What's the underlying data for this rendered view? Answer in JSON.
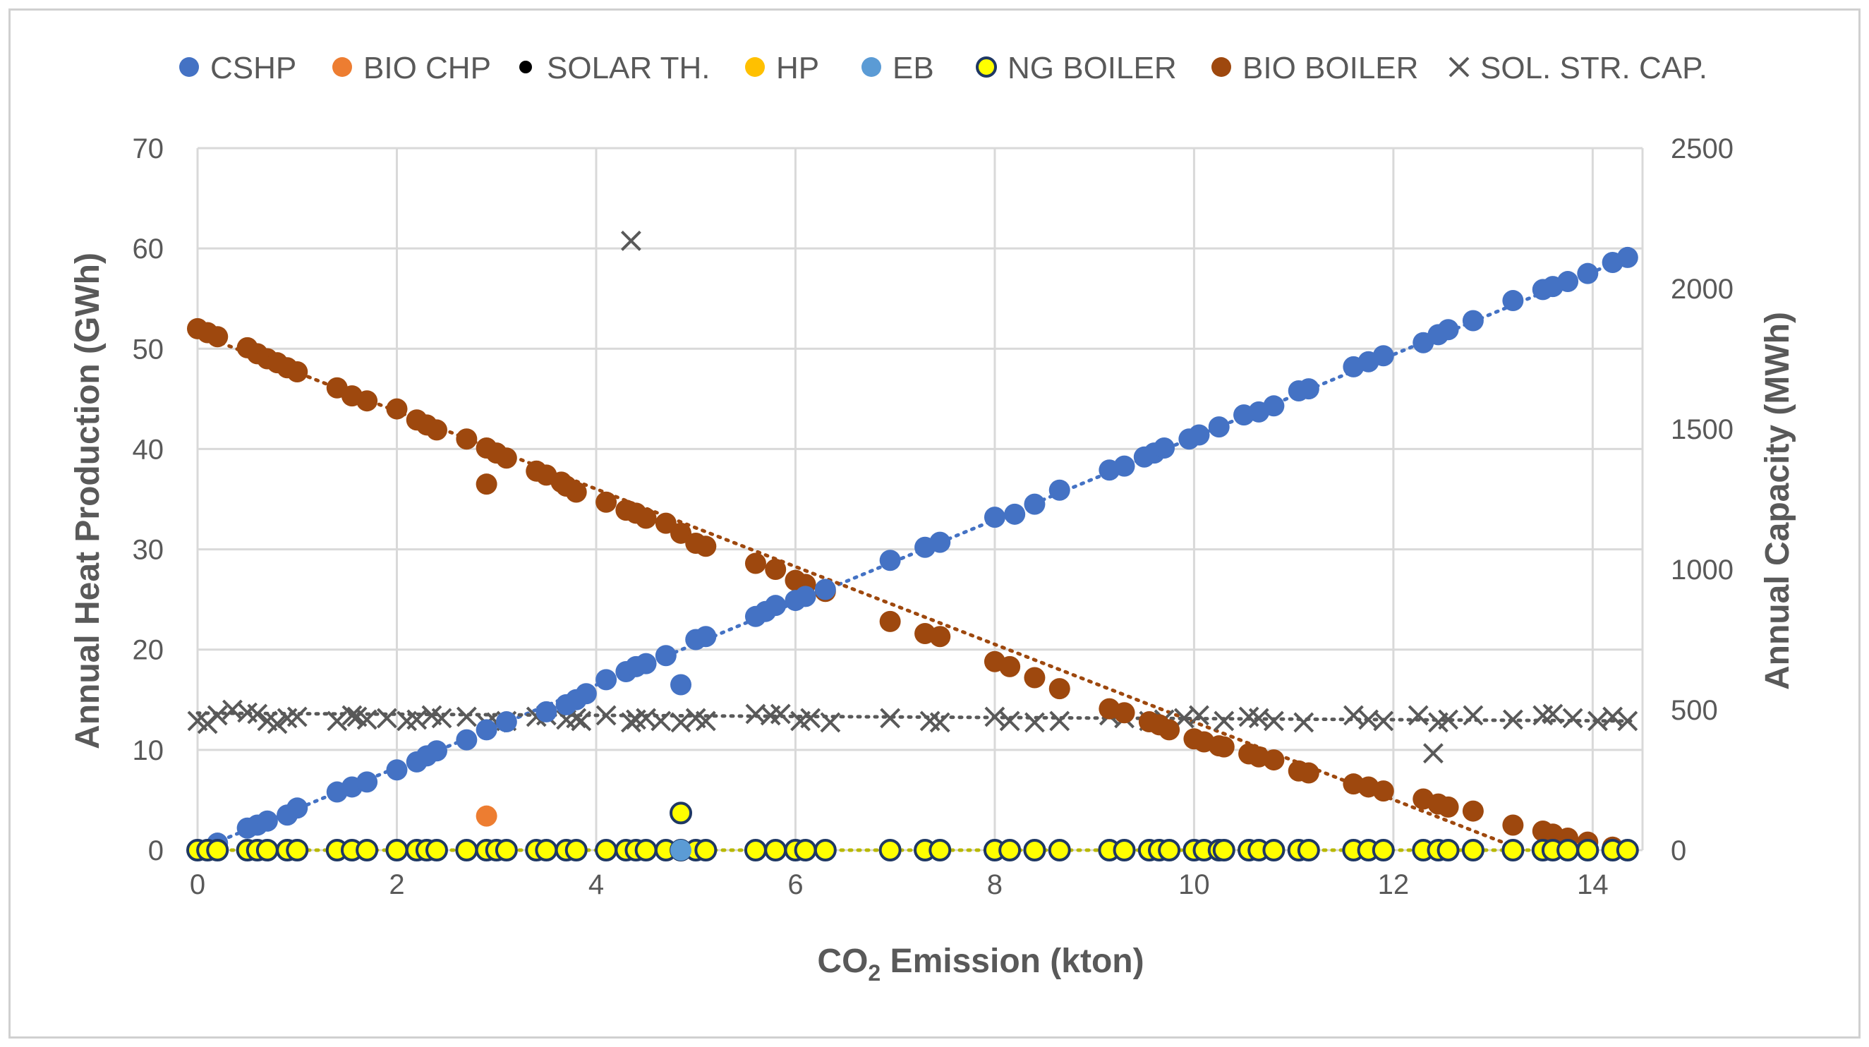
{
  "chart_data": {
    "type": "scatter",
    "title": "",
    "xlabel": "CO",
    "xlabel_sub": "2",
    "xlabel_suffix": " Emission (kton)",
    "ylabel": "Annual Heat Production (GWh)",
    "y2label": "Annual Capacity (MWh)",
    "xlim": [
      0,
      14.5
    ],
    "ylim": [
      0,
      70
    ],
    "y2lim": [
      0,
      2500
    ],
    "x_ticks": [
      "0",
      "2",
      "4",
      "6",
      "8",
      "10",
      "12",
      "14"
    ],
    "x_tick_values": [
      0,
      2,
      4,
      6,
      8,
      10,
      12,
      14
    ],
    "y_ticks": [
      "0",
      "10",
      "20",
      "30",
      "40",
      "50",
      "60",
      "70"
    ],
    "y_tick_values": [
      0,
      10,
      20,
      30,
      40,
      50,
      60,
      70
    ],
    "y2_ticks": [
      "0",
      "500",
      "1000",
      "1500",
      "2000",
      "2500"
    ],
    "y2_tick_values": [
      0,
      500,
      1000,
      1500,
      2000,
      2500
    ],
    "grid": true,
    "legend_position": "top",
    "legend": [
      "CSHP",
      "BIO CHP",
      "SOLAR TH.",
      "HP",
      "EB",
      "NG BOILER",
      "BIO BOILER",
      "SOL. STR. CAP."
    ],
    "colors": {
      "CSHP": "#4472c4",
      "BIO CHP": "#ed7d31",
      "SOLAR TH.": "#000000",
      "HP": "#ffc000",
      "EB": "#5b9bd5",
      "NG BOILER": "#ffff00",
      "NG BOILER edge": "#1f3864",
      "BIO BOILER": "#9e480e",
      "SOL. STR. CAP.": "#595959",
      "grid": "#d9d9d9",
      "text": "#595959"
    },
    "series": [
      {
        "name": "CSHP",
        "axis": "left",
        "marker": "circle",
        "x": [
          0.0,
          0.2,
          0.5,
          0.6,
          0.7,
          0.9,
          1.0,
          1.4,
          1.55,
          1.7,
          2.0,
          2.2,
          2.3,
          2.4,
          2.7,
          2.9,
          3.1,
          3.5,
          3.7,
          3.8,
          3.9,
          4.1,
          4.3,
          4.4,
          4.5,
          4.7,
          4.85,
          5.0,
          5.1,
          5.6,
          5.7,
          5.8,
          6.0,
          6.1,
          6.3,
          6.95,
          7.3,
          7.45,
          8.0,
          8.2,
          8.4,
          8.65,
          9.15,
          9.3,
          9.5,
          9.6,
          9.7,
          9.95,
          10.05,
          10.25,
          10.5,
          10.65,
          10.8,
          11.05,
          11.15,
          11.6,
          11.75,
          11.9,
          12.3,
          12.45,
          12.55,
          12.8,
          13.2,
          13.5,
          13.6,
          13.75,
          13.95,
          14.2,
          14.35
        ],
        "y": [
          0.0,
          0.7,
          2.2,
          2.5,
          2.9,
          3.5,
          4.2,
          5.8,
          6.3,
          6.8,
          8.0,
          8.8,
          9.4,
          9.9,
          11.0,
          12.0,
          12.8,
          13.8,
          14.5,
          15.0,
          15.6,
          17.0,
          17.8,
          18.3,
          18.6,
          19.4,
          16.5,
          21.0,
          21.3,
          23.3,
          23.8,
          24.4,
          24.9,
          25.3,
          26.0,
          28.9,
          30.2,
          30.7,
          33.2,
          33.5,
          34.5,
          35.9,
          37.9,
          38.3,
          39.2,
          39.6,
          40.1,
          41.0,
          41.4,
          42.2,
          43.4,
          43.7,
          44.3,
          45.8,
          46.0,
          48.2,
          48.7,
          49.3,
          50.6,
          51.4,
          51.9,
          52.8,
          54.8,
          55.9,
          56.2,
          56.7,
          57.5,
          58.6,
          59.1
        ]
      },
      {
        "name": "BIO BOILER",
        "axis": "left",
        "marker": "circle",
        "x": [
          0.0,
          0.1,
          0.2,
          0.5,
          0.6,
          0.7,
          0.8,
          0.9,
          1.0,
          1.4,
          1.55,
          1.7,
          2.0,
          2.2,
          2.3,
          2.4,
          2.7,
          2.9,
          3.0,
          3.1,
          3.4,
          3.5,
          3.65,
          3.7,
          3.8,
          4.1,
          4.3,
          4.4,
          4.5,
          4.7,
          4.85,
          5.0,
          5.1,
          5.6,
          5.8,
          6.0,
          6.1,
          6.3,
          6.95,
          7.3,
          7.45,
          8.0,
          8.15,
          8.4,
          8.65,
          9.15,
          9.3,
          9.55,
          9.65,
          9.75,
          10.0,
          10.1,
          10.25,
          10.3,
          10.55,
          10.65,
          10.8,
          11.05,
          11.15,
          11.6,
          11.75,
          11.9,
          12.3,
          12.45,
          12.55,
          12.8,
          13.2,
          13.5,
          13.6,
          13.75,
          13.95,
          14.2,
          14.35,
          2.9
        ],
        "y": [
          52.0,
          51.6,
          51.2,
          50.1,
          49.5,
          49.0,
          48.6,
          48.1,
          47.7,
          46.1,
          45.3,
          44.8,
          44.0,
          42.9,
          42.4,
          41.9,
          41.0,
          40.1,
          39.6,
          39.1,
          37.8,
          37.4,
          36.7,
          36.3,
          35.7,
          34.7,
          33.9,
          33.6,
          33.1,
          32.6,
          31.6,
          30.6,
          30.3,
          28.6,
          28.0,
          26.9,
          26.5,
          25.8,
          22.8,
          21.6,
          21.3,
          18.8,
          18.3,
          17.2,
          16.1,
          14.1,
          13.7,
          12.8,
          12.5,
          12.0,
          11.1,
          10.8,
          10.4,
          10.3,
          9.6,
          9.3,
          9.0,
          7.9,
          7.7,
          6.6,
          6.3,
          5.9,
          5.1,
          4.6,
          4.3,
          3.9,
          2.5,
          1.9,
          1.6,
          1.2,
          0.8,
          0.3,
          0.0,
          36.5
        ]
      },
      {
        "name": "NG BOILER",
        "axis": "left",
        "marker": "circle",
        "x": [
          0.0,
          0.1,
          0.2,
          0.5,
          0.6,
          0.7,
          0.9,
          1.0,
          1.4,
          1.55,
          1.7,
          2.0,
          2.2,
          2.3,
          2.4,
          2.7,
          2.9,
          3.0,
          3.1,
          3.4,
          3.5,
          3.7,
          3.8,
          4.1,
          4.3,
          4.4,
          4.5,
          4.7,
          4.85,
          5.0,
          5.1,
          5.6,
          5.8,
          6.0,
          6.1,
          6.3,
          6.95,
          7.3,
          7.45,
          8.0,
          8.15,
          8.4,
          8.65,
          9.15,
          9.3,
          9.55,
          9.65,
          9.75,
          10.0,
          10.1,
          10.25,
          10.3,
          10.55,
          10.65,
          10.8,
          11.05,
          11.15,
          11.6,
          11.75,
          11.9,
          12.3,
          12.45,
          12.55,
          12.8,
          13.2,
          13.5,
          13.6,
          13.75,
          13.95,
          14.2,
          14.35,
          4.85
        ],
        "y": [
          0,
          0,
          0,
          0,
          0,
          0,
          0,
          0,
          0,
          0,
          0,
          0,
          0,
          0,
          0,
          0,
          0,
          0,
          0,
          0,
          0,
          0,
          0,
          0,
          0,
          0,
          0,
          0,
          0,
          0,
          0,
          0,
          0,
          0,
          0,
          0,
          0,
          0,
          0,
          0,
          0,
          0,
          0,
          0,
          0,
          0,
          0,
          0,
          0,
          0,
          0,
          0,
          0,
          0,
          0,
          0,
          0,
          0,
          0,
          0,
          0,
          0,
          0,
          0,
          0,
          0,
          0,
          0,
          0,
          0,
          0,
          3.7
        ]
      },
      {
        "name": "BIO CHP",
        "axis": "left",
        "marker": "circle",
        "x": [
          2.9
        ],
        "y": [
          3.4
        ]
      },
      {
        "name": "EB",
        "axis": "left",
        "marker": "circle",
        "x": [
          4.85
        ],
        "y": [
          0.0
        ]
      },
      {
        "name": "HP",
        "axis": "left",
        "marker": "circle",
        "x": [],
        "y": []
      },
      {
        "name": "SOLAR TH.",
        "axis": "left",
        "marker": "circle",
        "x": [],
        "y": []
      },
      {
        "name": "SOL. STR. CAP.",
        "axis": "right",
        "marker": "x",
        "x": [
          0.0,
          0.1,
          0.2,
          0.35,
          0.5,
          0.6,
          0.7,
          0.8,
          0.9,
          1.0,
          1.4,
          1.55,
          1.6,
          1.7,
          1.9,
          2.1,
          2.2,
          2.35,
          2.45,
          2.7,
          2.9,
          3.0,
          3.1,
          3.4,
          3.5,
          3.7,
          3.8,
          3.85,
          4.1,
          4.35,
          4.4,
          4.5,
          4.65,
          4.85,
          5.0,
          5.1,
          5.6,
          5.75,
          5.85,
          6.05,
          6.15,
          6.35,
          6.95,
          7.35,
          7.45,
          8.0,
          8.15,
          8.4,
          8.65,
          9.15,
          9.3,
          9.55,
          9.7,
          9.9,
          10.05,
          10.3,
          10.55,
          10.65,
          10.8,
          11.1,
          11.6,
          11.75,
          11.9,
          12.25,
          12.45,
          12.55,
          12.8,
          13.2,
          13.5,
          13.6,
          13.8,
          14.05,
          14.2,
          14.35,
          4.35,
          12.4
        ],
        "y": [
          460,
          450,
          480,
          500,
          490,
          485,
          460,
          450,
          470,
          475,
          460,
          480,
          475,
          465,
          470,
          460,
          465,
          480,
          470,
          475,
          450,
          455,
          460,
          475,
          480,
          465,
          470,
          460,
          480,
          455,
          465,
          470,
          460,
          455,
          470,
          460,
          485,
          480,
          485,
          460,
          470,
          455,
          470,
          460,
          455,
          475,
          460,
          455,
          460,
          480,
          470,
          460,
          465,
          470,
          480,
          460,
          475,
          470,
          460,
          455,
          480,
          465,
          460,
          480,
          455,
          465,
          480,
          465,
          480,
          485,
          470,
          460,
          475,
          460,
          2170,
          345
        ]
      }
    ],
    "trendlines": [
      {
        "series": "CSHP",
        "style": "dotted",
        "x": [
          0.0,
          14.4
        ],
        "y": [
          0.0,
          59.3
        ]
      },
      {
        "series": "BIO BOILER",
        "style": "dotted",
        "x": [
          0.0,
          13.3
        ],
        "y": [
          51.5,
          0.0
        ]
      },
      {
        "series": "SOL. STR. CAP.",
        "axis": "right",
        "style": "dotted",
        "x": [
          0.0,
          14.4
        ],
        "y": [
          488,
          460
        ]
      },
      {
        "series": "NG BOILER",
        "style": "dotted",
        "x": [
          0.0,
          14.4
        ],
        "y": [
          0.0,
          0.0
        ]
      }
    ]
  }
}
